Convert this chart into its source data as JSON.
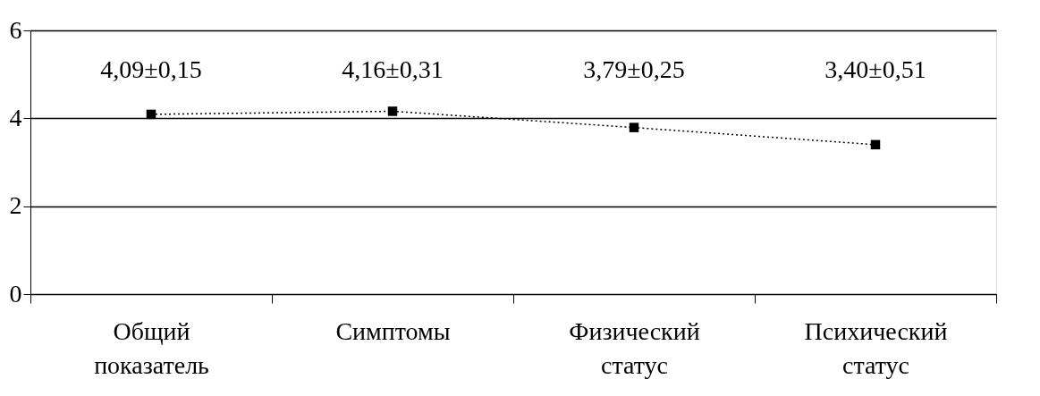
{
  "chart_data": {
    "type": "line",
    "categories": [
      "Общий показатель",
      "Симптомы",
      "Физический статус",
      "Психический статус"
    ],
    "series": [
      {
        "color": "#000000",
        "values": [
          4.09,
          4.16,
          3.79,
          3.4
        ],
        "value_labels": [
          "4,09±0,15",
          "4,16±0,31",
          "3,79±0,25",
          "3,40±0,51"
        ]
      }
    ],
    "ylim": [
      0,
      6
    ],
    "yticks": [
      0,
      2,
      4,
      6
    ],
    "grid": "y",
    "marker": "square",
    "line_style": "dotted",
    "legend": false
  }
}
